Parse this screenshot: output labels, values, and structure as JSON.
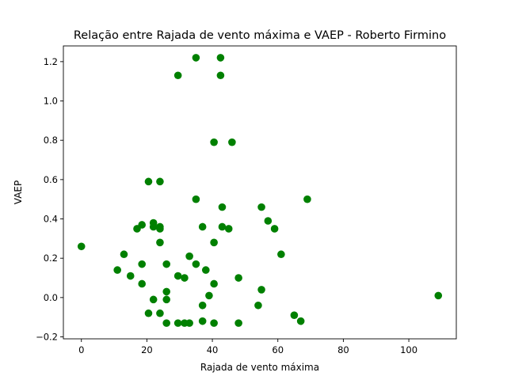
{
  "chart_data": {
    "type": "scatter",
    "title": "Relação entre Rajada de vento máxima e VAEP - Roberto Firmino",
    "xlabel": "Rajada de vento máxima",
    "ylabel": "VAEP",
    "xlim": [
      -5.5,
      114.5
    ],
    "ylim": [
      -0.21,
      1.28
    ],
    "xticks": [
      0,
      20,
      40,
      60,
      80,
      100
    ],
    "yticks": [
      -0.2,
      0.0,
      0.2,
      0.4,
      0.6,
      0.8,
      1.0,
      1.2
    ],
    "xtick_labels": [
      "0",
      "20",
      "40",
      "60",
      "80",
      "100"
    ],
    "ytick_labels": [
      "−0.2",
      "0.0",
      "0.2",
      "0.4",
      "0.6",
      "0.8",
      "1.0",
      "1.2"
    ],
    "grid": false,
    "marker_color": "#008000",
    "points": [
      {
        "x": 0,
        "y": 0.26
      },
      {
        "x": 11,
        "y": 0.14
      },
      {
        "x": 13,
        "y": 0.22
      },
      {
        "x": 15,
        "y": 0.11
      },
      {
        "x": 17,
        "y": 0.35
      },
      {
        "x": 18.5,
        "y": 0.37
      },
      {
        "x": 18.5,
        "y": 0.17
      },
      {
        "x": 18.5,
        "y": 0.07
      },
      {
        "x": 20.5,
        "y": 0.59
      },
      {
        "x": 20.5,
        "y": -0.08
      },
      {
        "x": 22,
        "y": 0.38
      },
      {
        "x": 22,
        "y": 0.36
      },
      {
        "x": 22,
        "y": -0.01
      },
      {
        "x": 24,
        "y": 0.59
      },
      {
        "x": 24,
        "y": 0.36
      },
      {
        "x": 24,
        "y": 0.35
      },
      {
        "x": 24,
        "y": 0.28
      },
      {
        "x": 24,
        "y": -0.08
      },
      {
        "x": 26,
        "y": 0.17
      },
      {
        "x": 26,
        "y": 0.03
      },
      {
        "x": 26,
        "y": -0.01
      },
      {
        "x": 26,
        "y": -0.13
      },
      {
        "x": 29.5,
        "y": 1.13
      },
      {
        "x": 29.5,
        "y": 0.11
      },
      {
        "x": 29.5,
        "y": -0.13
      },
      {
        "x": 31.5,
        "y": 0.1
      },
      {
        "x": 31.5,
        "y": -0.13
      },
      {
        "x": 33,
        "y": 0.21
      },
      {
        "x": 33,
        "y": -0.13
      },
      {
        "x": 35,
        "y": 1.22
      },
      {
        "x": 35,
        "y": 0.5
      },
      {
        "x": 35,
        "y": 0.17
      },
      {
        "x": 37,
        "y": 0.36
      },
      {
        "x": 37,
        "y": -0.04
      },
      {
        "x": 37,
        "y": -0.12
      },
      {
        "x": 38,
        "y": 0.14
      },
      {
        "x": 39,
        "y": 0.01
      },
      {
        "x": 40.5,
        "y": 0.79
      },
      {
        "x": 40.5,
        "y": 0.28
      },
      {
        "x": 40.5,
        "y": 0.07
      },
      {
        "x": 40.5,
        "y": -0.13
      },
      {
        "x": 42.5,
        "y": 1.22
      },
      {
        "x": 42.5,
        "y": 1.13
      },
      {
        "x": 43,
        "y": 0.46
      },
      {
        "x": 43,
        "y": 0.36
      },
      {
        "x": 45,
        "y": 0.35
      },
      {
        "x": 46,
        "y": 0.79
      },
      {
        "x": 48,
        "y": 0.1
      },
      {
        "x": 48,
        "y": -0.13
      },
      {
        "x": 54,
        "y": -0.04
      },
      {
        "x": 55,
        "y": 0.46
      },
      {
        "x": 55,
        "y": 0.04
      },
      {
        "x": 57,
        "y": 0.39
      },
      {
        "x": 59,
        "y": 0.35
      },
      {
        "x": 61,
        "y": 0.22
      },
      {
        "x": 65,
        "y": -0.09
      },
      {
        "x": 67,
        "y": -0.12
      },
      {
        "x": 69,
        "y": 0.5
      },
      {
        "x": 109,
        "y": 0.01
      }
    ]
  }
}
